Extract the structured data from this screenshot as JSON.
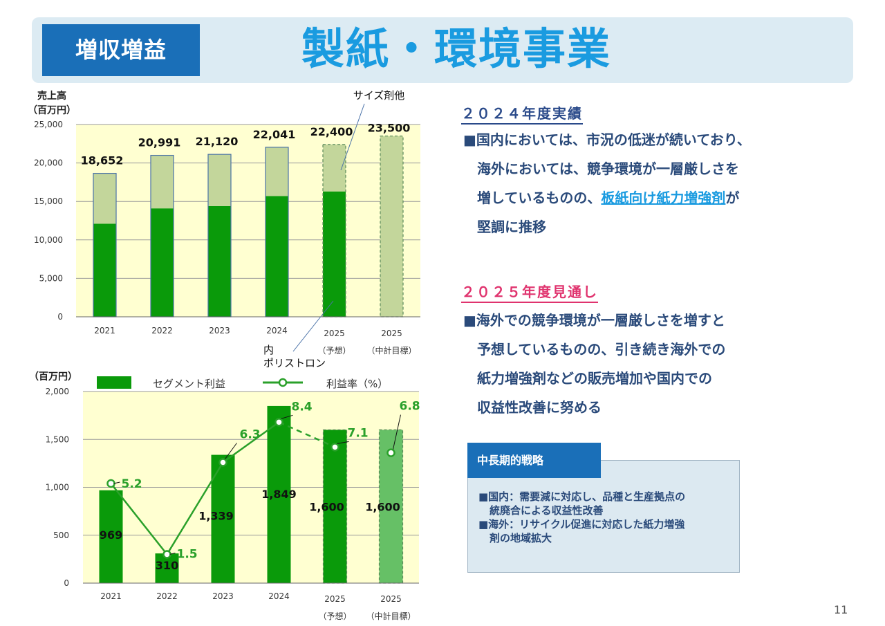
{
  "header": {
    "badge": "増収増益",
    "title": "製紙・環境事業"
  },
  "chart_data": [
    {
      "type": "bar",
      "ylabel_line1": "売上高",
      "ylabel_line2": "（百万円）",
      "ylim": [
        0,
        25000
      ],
      "yticks": [
        "0",
        "5,000",
        "10,000",
        "15,000",
        "20,000",
        "25,000"
      ],
      "categories": [
        "2021",
        "2022",
        "2023",
        "2024",
        "2025",
        "2025"
      ],
      "category_sub": [
        "",
        "",
        "",
        "",
        "（予想）",
        "（中計目標）"
      ],
      "totals": [
        18652,
        20991,
        21120,
        22041,
        22400,
        23500
      ],
      "total_labels": [
        "18,652",
        "20,991",
        "21,120",
        "22,041",
        "22,400",
        "23,500"
      ],
      "series": [
        {
          "values": [
            12100,
            14100,
            14400,
            15700,
            16300,
            null
          ],
          "color": "#0a9a0a"
        },
        {
          "values": [
            6552,
            6891,
            6720,
            6341,
            6100,
            23500
          ],
          "color": "#c3d69b"
        }
      ],
      "callout_upper": "サイズ剤他",
      "callout_lower_1": "内",
      "callout_lower_2": "ポリストロン",
      "grid": true
    },
    {
      "type": "bar",
      "ylabel": "（百万円）",
      "ylim": [
        0,
        2000
      ],
      "yticks": [
        "0",
        "500",
        "1,000",
        "1,500",
        "2,000"
      ],
      "categories": [
        "2021",
        "2022",
        "2023",
        "2024",
        "2025",
        "2025"
      ],
      "category_sub": [
        "",
        "",
        "",
        "",
        "（予想）",
        "（中計目標）"
      ],
      "legend": {
        "bar": "セグメント利益",
        "line": "利益率（%）"
      },
      "series": [
        {
          "name": "セグメント利益",
          "values": [
            969,
            310,
            1339,
            1849,
            1600,
            1600
          ],
          "labels": [
            "969",
            "310",
            "1,339",
            "1,849",
            "1,600",
            "1,600"
          ],
          "color": "#0a9a0a"
        },
        {
          "name": "利益率（%）",
          "values": [
            5.2,
            1.5,
            6.3,
            8.4,
            7.1,
            6.8
          ],
          "labels": [
            "5.2",
            "1.5",
            "6.3",
            "8.4",
            "7.1",
            "6.8"
          ],
          "color": "#2aa02a"
        }
      ],
      "grid": true
    }
  ],
  "results_2024": {
    "heading": "２０２４年度実績",
    "line1": "■国内においては、市況の低迷が続いており、",
    "line2": "海外においては、競争環境が一層厳しさを",
    "line3_pre": "増しているものの、",
    "line3_highlight": "板紙向け紙力増強剤",
    "line3_post": "が",
    "line4": "堅調に推移"
  },
  "outlook_2025": {
    "heading": "２０２５年度見通し",
    "line1": "■海外での競争環境が一層厳しさを増すと",
    "line2": "予想しているものの、引き続き海外での",
    "line3": "紙力増強剤などの販売増加や国内での",
    "line4": "収益性改善に努める"
  },
  "strategy": {
    "title": "中長期的戦略",
    "line1": "■国内：需要減に対応し、品種と生産拠点の",
    "line2": "統廃合による収益性改善",
    "line3": "■海外：リサイクル促進に対応した紙力増強",
    "line4": "剤の地域拡大"
  },
  "page_number": "11"
}
